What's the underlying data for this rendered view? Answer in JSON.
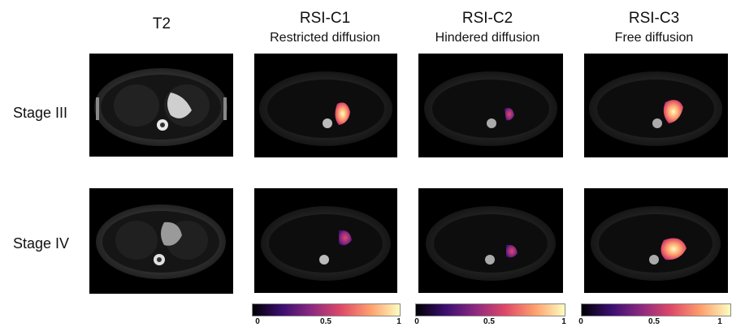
{
  "columns": [
    {
      "title": "T2",
      "subtitle": ""
    },
    {
      "title": "RSI-C1",
      "subtitle": "Restricted diffusion"
    },
    {
      "title": "RSI-C2",
      "subtitle": "Hindered diffusion"
    },
    {
      "title": "RSI-C3",
      "subtitle": "Free diffusion"
    }
  ],
  "rows": [
    {
      "label": "Stage III"
    },
    {
      "label": "Stage IV"
    }
  ],
  "colorbar": {
    "ticks": [
      "0",
      "0.5",
      "1"
    ],
    "colormap": [
      "#000004",
      "#3b0f70",
      "#8c2981",
      "#de4968",
      "#fe9f6d",
      "#fcfdbf"
    ]
  }
}
